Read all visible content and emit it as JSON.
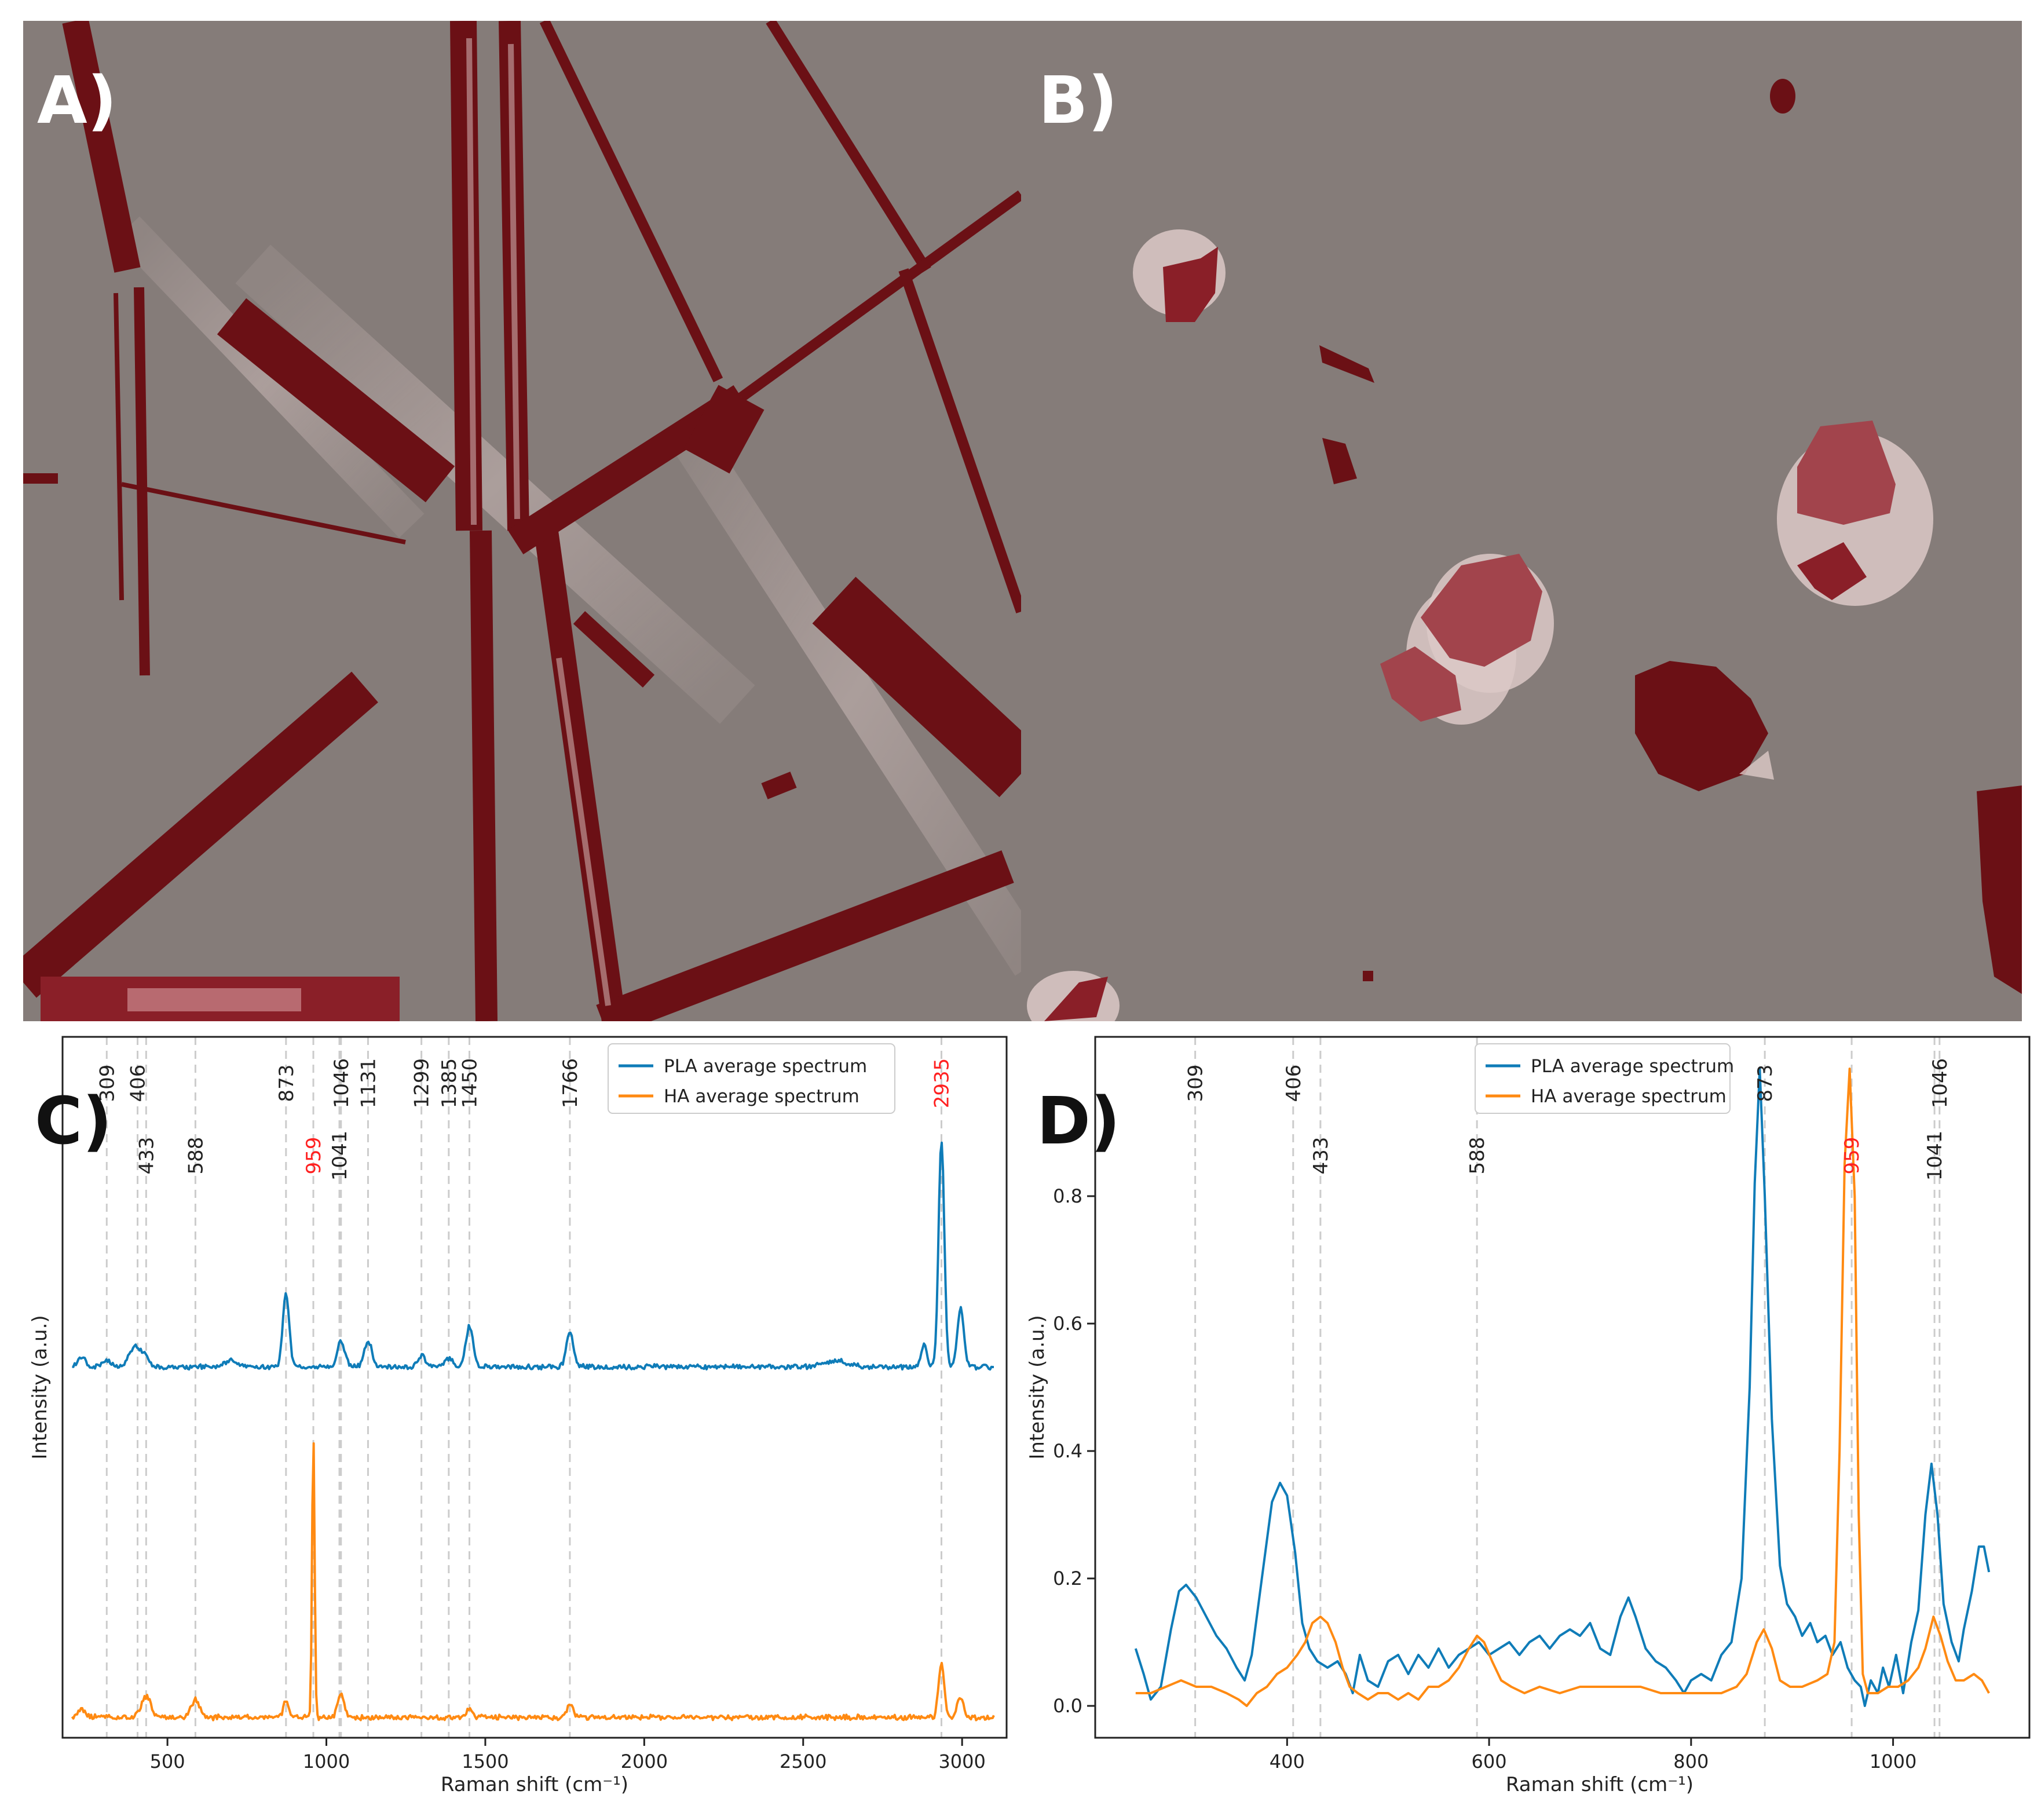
{
  "panels": {
    "a": {
      "label": "A)"
    },
    "b": {
      "label": "B)"
    },
    "c": {
      "label": "C)"
    },
    "d": {
      "label": "D)"
    }
  },
  "colors": {
    "map_background": "#857c79",
    "map_feature": "#6b1015",
    "map_highlight": "#dcc9c7",
    "pla": "#0f7cb8",
    "ha": "#ff8a12",
    "reference_line": "#cccccc",
    "red_label": "#ff2020"
  },
  "legend": {
    "pla": "PLA average spectrum",
    "ha": "HA average spectrum"
  },
  "chart_data": [
    {
      "id": "C",
      "type": "line",
      "xlabel": "Raman shift (cm⁻¹)",
      "ylabel": "Intensity (a.u.)",
      "xlim": [
        170,
        3140
      ],
      "ylim": [
        -0.07,
        2.33
      ],
      "xticks": [
        500,
        1000,
        1500,
        2000,
        2500,
        3000
      ],
      "yticks": [],
      "grid": false,
      "legend_position": "top-right",
      "reference_lines": [
        309,
        406,
        433,
        588,
        873,
        959,
        1041,
        1046,
        1131,
        1299,
        1385,
        1450,
        1766,
        2935
      ],
      "peak_labels": [
        {
          "text": "309",
          "x": 309,
          "row": "upper",
          "highlight": false
        },
        {
          "text": "406",
          "x": 406,
          "row": "upper",
          "highlight": false
        },
        {
          "text": "433",
          "x": 433,
          "row": "lower",
          "highlight": false
        },
        {
          "text": "588",
          "x": 588,
          "row": "lower",
          "highlight": false
        },
        {
          "text": "873",
          "x": 873,
          "row": "upper",
          "highlight": false
        },
        {
          "text": "959",
          "x": 959,
          "row": "lower",
          "highlight": true
        },
        {
          "text": "1041",
          "x": 1041,
          "row": "lower",
          "highlight": false
        },
        {
          "text": "1046",
          "x": 1046,
          "row": "upper",
          "highlight": false
        },
        {
          "text": "1131",
          "x": 1131,
          "row": "upper",
          "highlight": false
        },
        {
          "text": "1299",
          "x": 1299,
          "row": "upper",
          "highlight": false
        },
        {
          "text": "1385",
          "x": 1385,
          "row": "upper",
          "highlight": false
        },
        {
          "text": "1450",
          "x": 1450,
          "row": "upper",
          "highlight": false
        },
        {
          "text": "1766",
          "x": 1766,
          "row": "upper",
          "highlight": false
        },
        {
          "text": "2935",
          "x": 2935,
          "row": "upper",
          "highlight": true
        }
      ],
      "series": [
        {
          "name": "PLA average spectrum",
          "baseline": 1.2,
          "x_start": 200,
          "x_end": 3100,
          "peaks": [
            [
              230,
              0.03,
              12
            ],
            [
              309,
              0.02,
              15
            ],
            [
              400,
              0.07,
              20
            ],
            [
              433,
              0.02,
              12
            ],
            [
              700,
              0.02,
              20
            ],
            [
              873,
              0.25,
              10
            ],
            [
              1046,
              0.09,
              12
            ],
            [
              1131,
              0.09,
              12
            ],
            [
              1299,
              0.04,
              12
            ],
            [
              1385,
              0.03,
              12
            ],
            [
              1450,
              0.14,
              11
            ],
            [
              1766,
              0.12,
              11
            ],
            [
              2600,
              0.02,
              40
            ],
            [
              2880,
              0.08,
              8
            ],
            [
              2935,
              0.78,
              9
            ],
            [
              2995,
              0.2,
              10
            ]
          ]
        },
        {
          "name": "HA average spectrum",
          "baseline": 0.0,
          "x_start": 200,
          "x_end": 3100,
          "peaks": [
            [
              230,
              0.03,
              12
            ],
            [
              433,
              0.07,
              15
            ],
            [
              588,
              0.06,
              13
            ],
            [
              873,
              0.06,
              8
            ],
            [
              959,
              0.97,
              4
            ],
            [
              1046,
              0.08,
              10
            ],
            [
              1450,
              0.03,
              10
            ],
            [
              1766,
              0.04,
              10
            ],
            [
              2935,
              0.18,
              9
            ],
            [
              2995,
              0.07,
              10
            ]
          ]
        }
      ]
    },
    {
      "id": "D",
      "type": "line",
      "xlabel": "Raman shift (cm⁻¹)",
      "ylabel": "Intensity (a.u.)",
      "xlim": [
        210,
        1135
      ],
      "ylim": [
        -0.05,
        1.05
      ],
      "xticks": [
        400,
        600,
        800,
        1000
      ],
      "yticks": [
        0.0,
        0.2,
        0.4,
        0.6,
        0.8
      ],
      "ytick_labels": [
        "0.0",
        "0.2",
        "0.4",
        "0.6",
        "0.8"
      ],
      "grid": false,
      "legend_position": "top-center",
      "reference_lines": [
        309,
        406,
        433,
        588,
        873,
        959,
        1041,
        1046
      ],
      "peak_labels": [
        {
          "text": "309",
          "x": 309,
          "row": "upper",
          "highlight": false
        },
        {
          "text": "406",
          "x": 406,
          "row": "upper",
          "highlight": false
        },
        {
          "text": "433",
          "x": 433,
          "row": "lower",
          "highlight": false
        },
        {
          "text": "588",
          "x": 588,
          "row": "lower",
          "highlight": false
        },
        {
          "text": "873",
          "x": 873,
          "row": "upper",
          "highlight": false
        },
        {
          "text": "959",
          "x": 959,
          "row": "lower",
          "highlight": true
        },
        {
          "text": "1041",
          "x": 1041,
          "row": "lower",
          "highlight": false
        },
        {
          "text": "1046",
          "x": 1046,
          "row": "upper",
          "highlight": false
        }
      ],
      "series": [
        {
          "name": "PLA average spectrum",
          "points": [
            [
              250,
              0.09
            ],
            [
              258,
              0.05
            ],
            [
              265,
              0.01
            ],
            [
              275,
              0.03
            ],
            [
              285,
              0.12
            ],
            [
              293,
              0.18
            ],
            [
              300,
              0.19
            ],
            [
              310,
              0.17
            ],
            [
              320,
              0.14
            ],
            [
              330,
              0.11
            ],
            [
              340,
              0.09
            ],
            [
              350,
              0.06
            ],
            [
              358,
              0.04
            ],
            [
              365,
              0.08
            ],
            [
              375,
              0.2
            ],
            [
              385,
              0.32
            ],
            [
              393,
              0.35
            ],
            [
              400,
              0.33
            ],
            [
              408,
              0.24
            ],
            [
              415,
              0.13
            ],
            [
              422,
              0.09
            ],
            [
              430,
              0.07
            ],
            [
              440,
              0.06
            ],
            [
              450,
              0.07
            ],
            [
              458,
              0.05
            ],
            [
              465,
              0.02
            ],
            [
              472,
              0.08
            ],
            [
              480,
              0.04
            ],
            [
              490,
              0.03
            ],
            [
              500,
              0.07
            ],
            [
              510,
              0.08
            ],
            [
              520,
              0.05
            ],
            [
              530,
              0.08
            ],
            [
              540,
              0.06
            ],
            [
              550,
              0.09
            ],
            [
              560,
              0.06
            ],
            [
              570,
              0.08
            ],
            [
              580,
              0.09
            ],
            [
              590,
              0.1
            ],
            [
              600,
              0.08
            ],
            [
              610,
              0.09
            ],
            [
              620,
              0.1
            ],
            [
              630,
              0.08
            ],
            [
              640,
              0.1
            ],
            [
              650,
              0.11
            ],
            [
              660,
              0.09
            ],
            [
              670,
              0.11
            ],
            [
              680,
              0.12
            ],
            [
              690,
              0.11
            ],
            [
              700,
              0.13
            ],
            [
              710,
              0.09
            ],
            [
              720,
              0.08
            ],
            [
              730,
              0.14
            ],
            [
              738,
              0.17
            ],
            [
              745,
              0.14
            ],
            [
              755,
              0.09
            ],
            [
              765,
              0.07
            ],
            [
              775,
              0.06
            ],
            [
              785,
              0.04
            ],
            [
              793,
              0.02
            ],
            [
              800,
              0.04
            ],
            [
              810,
              0.05
            ],
            [
              820,
              0.04
            ],
            [
              830,
              0.08
            ],
            [
              840,
              0.1
            ],
            [
              850,
              0.2
            ],
            [
              858,
              0.5
            ],
            [
              863,
              0.82
            ],
            [
              868,
              1.0
            ],
            [
              873,
              0.8
            ],
            [
              880,
              0.45
            ],
            [
              888,
              0.22
            ],
            [
              895,
              0.16
            ],
            [
              903,
              0.14
            ],
            [
              910,
              0.11
            ],
            [
              918,
              0.13
            ],
            [
              925,
              0.1
            ],
            [
              933,
              0.11
            ],
            [
              940,
              0.08
            ],
            [
              948,
              0.1
            ],
            [
              955,
              0.06
            ],
            [
              962,
              0.04
            ],
            [
              968,
              0.03
            ],
            [
              972,
              0.0
            ],
            [
              978,
              0.04
            ],
            [
              985,
              0.02
            ],
            [
              990,
              0.06
            ],
            [
              996,
              0.03
            ],
            [
              1003,
              0.08
            ],
            [
              1010,
              0.02
            ],
            [
              1018,
              0.1
            ],
            [
              1025,
              0.15
            ],
            [
              1032,
              0.3
            ],
            [
              1038,
              0.38
            ],
            [
              1044,
              0.3
            ],
            [
              1050,
              0.16
            ],
            [
              1058,
              0.1
            ],
            [
              1065,
              0.07
            ],
            [
              1070,
              0.12
            ],
            [
              1078,
              0.18
            ],
            [
              1085,
              0.25
            ],
            [
              1090,
              0.25
            ],
            [
              1095,
              0.21
            ]
          ]
        },
        {
          "name": "HA average spectrum",
          "points": [
            [
              250,
              0.02
            ],
            [
              265,
              0.02
            ],
            [
              280,
              0.03
            ],
            [
              295,
              0.04
            ],
            [
              310,
              0.03
            ],
            [
              325,
              0.03
            ],
            [
              340,
              0.02
            ],
            [
              352,
              0.01
            ],
            [
              360,
              0.0
            ],
            [
              370,
              0.02
            ],
            [
              380,
              0.03
            ],
            [
              390,
              0.05
            ],
            [
              400,
              0.06
            ],
            [
              410,
              0.08
            ],
            [
              418,
              0.1
            ],
            [
              425,
              0.13
            ],
            [
              433,
              0.14
            ],
            [
              440,
              0.13
            ],
            [
              448,
              0.1
            ],
            [
              455,
              0.06
            ],
            [
              462,
              0.03
            ],
            [
              470,
              0.02
            ],
            [
              480,
              0.01
            ],
            [
              490,
              0.02
            ],
            [
              500,
              0.02
            ],
            [
              510,
              0.01
            ],
            [
              520,
              0.02
            ],
            [
              530,
              0.01
            ],
            [
              540,
              0.03
            ],
            [
              550,
              0.03
            ],
            [
              560,
              0.04
            ],
            [
              570,
              0.06
            ],
            [
              580,
              0.09
            ],
            [
              588,
              0.11
            ],
            [
              595,
              0.1
            ],
            [
              603,
              0.07
            ],
            [
              612,
              0.04
            ],
            [
              622,
              0.03
            ],
            [
              635,
              0.02
            ],
            [
              650,
              0.03
            ],
            [
              670,
              0.02
            ],
            [
              690,
              0.03
            ],
            [
              710,
              0.03
            ],
            [
              730,
              0.03
            ],
            [
              750,
              0.03
            ],
            [
              770,
              0.02
            ],
            [
              790,
              0.02
            ],
            [
              810,
              0.02
            ],
            [
              830,
              0.02
            ],
            [
              845,
              0.03
            ],
            [
              855,
              0.05
            ],
            [
              865,
              0.1
            ],
            [
              872,
              0.12
            ],
            [
              880,
              0.09
            ],
            [
              888,
              0.04
            ],
            [
              898,
              0.03
            ],
            [
              910,
              0.03
            ],
            [
              925,
              0.04
            ],
            [
              935,
              0.05
            ],
            [
              942,
              0.1
            ],
            [
              947,
              0.4
            ],
            [
              952,
              0.85
            ],
            [
              957,
              1.0
            ],
            [
              962,
              0.8
            ],
            [
              966,
              0.3
            ],
            [
              970,
              0.05
            ],
            [
              975,
              0.02
            ],
            [
              985,
              0.02
            ],
            [
              995,
              0.03
            ],
            [
              1005,
              0.03
            ],
            [
              1015,
              0.04
            ],
            [
              1025,
              0.06
            ],
            [
              1032,
              0.09
            ],
            [
              1040,
              0.14
            ],
            [
              1047,
              0.11
            ],
            [
              1054,
              0.07
            ],
            [
              1062,
              0.04
            ],
            [
              1070,
              0.04
            ],
            [
              1080,
              0.05
            ],
            [
              1088,
              0.04
            ],
            [
              1095,
              0.02
            ]
          ]
        }
      ]
    }
  ]
}
